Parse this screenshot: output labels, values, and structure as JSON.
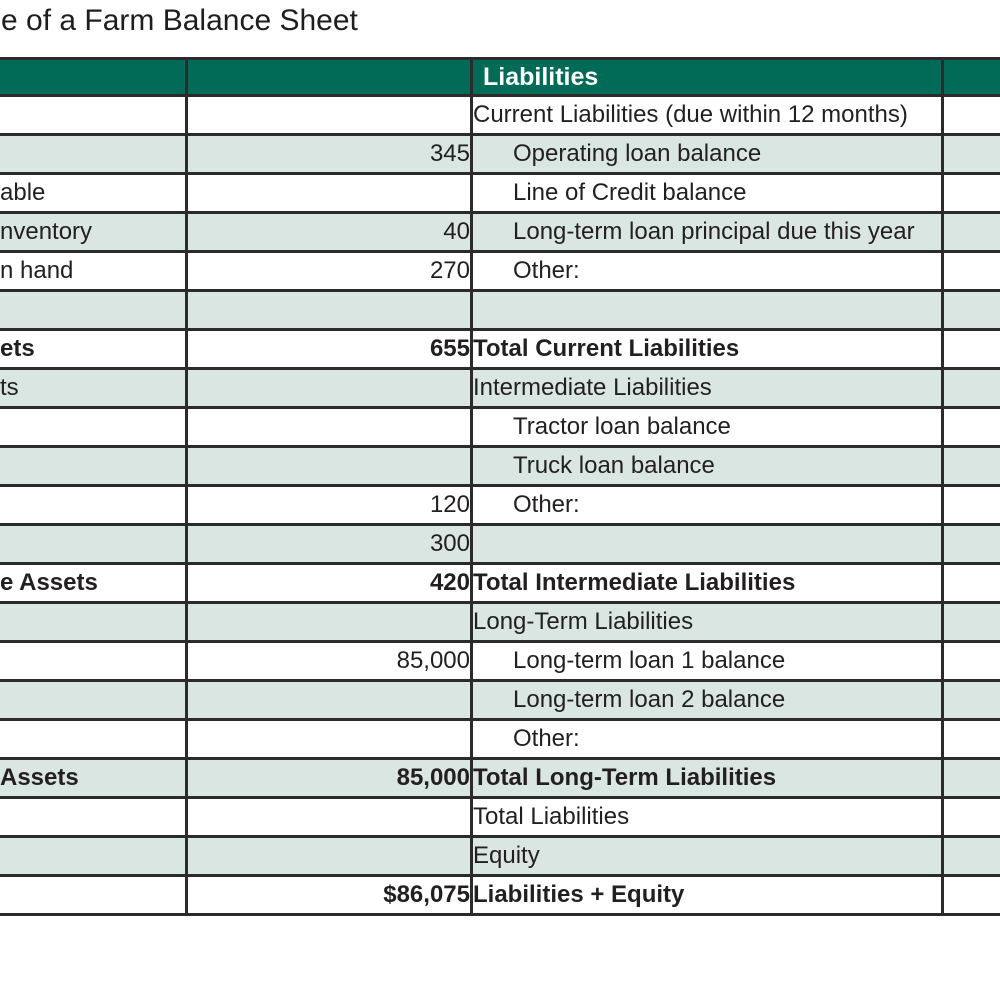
{
  "title": "e of a Farm Balance Sheet",
  "colors": {
    "header_bg": "#016b58",
    "header_text": "#ffffff",
    "row_tint": "#d9e6e1",
    "border": "#2b2b2b",
    "text": "#231f20"
  },
  "table": {
    "header": {
      "assets_label": "",
      "assets_value": "",
      "liabilities_label": "Liabilities",
      "liabilities_value": ""
    },
    "rows": [
      {
        "asset_fragment": "",
        "asset_value": "",
        "liability_label": "Current Liabilities (due within 12 months)",
        "liability_value": "",
        "shade": false,
        "bold": false,
        "indent": false
      },
      {
        "asset_fragment": "",
        "asset_value": "345",
        "liability_label": "Operating loan balance",
        "liability_value": "",
        "shade": true,
        "bold": false,
        "indent": true
      },
      {
        "asset_fragment": "able",
        "asset_value": "",
        "liability_label": "Line of Credit balance",
        "liability_value": "",
        "shade": false,
        "bold": false,
        "indent": true
      },
      {
        "asset_fragment": "nventory",
        "asset_value": "40",
        "liability_label": "Long-term loan principal due this year",
        "liability_value": "",
        "shade": true,
        "bold": false,
        "indent": true
      },
      {
        "asset_fragment": "n hand",
        "asset_value": "270",
        "liability_label": "Other:",
        "liability_value": "",
        "shade": false,
        "bold": false,
        "indent": true
      },
      {
        "asset_fragment": "",
        "asset_value": "",
        "liability_label": "",
        "liability_value": "",
        "shade": true,
        "bold": false,
        "indent": false
      },
      {
        "asset_fragment": "ets",
        "asset_value": "655",
        "liability_label": "Total Current Liabilities",
        "liability_value": "",
        "shade": false,
        "bold": true,
        "indent": false
      },
      {
        "asset_fragment": "ts",
        "asset_value": "",
        "liability_label": "Intermediate Liabilities",
        "liability_value": "",
        "shade": true,
        "bold": false,
        "indent": false
      },
      {
        "asset_fragment": "",
        "asset_value": "",
        "liability_label": "Tractor loan balance",
        "liability_value": "",
        "shade": false,
        "bold": false,
        "indent": true
      },
      {
        "asset_fragment": "",
        "asset_value": "",
        "liability_label": "Truck loan balance",
        "liability_value": "",
        "shade": true,
        "bold": false,
        "indent": true
      },
      {
        "asset_fragment": "",
        "asset_value": "120",
        "liability_label": "Other:",
        "liability_value": "",
        "shade": false,
        "bold": false,
        "indent": true
      },
      {
        "asset_fragment": "",
        "asset_value": "300",
        "liability_label": "",
        "liability_value": "",
        "shade": true,
        "bold": false,
        "indent": false
      },
      {
        "asset_fragment": "e Assets",
        "asset_value": "420",
        "liability_label": "Total Intermediate Liabilities",
        "liability_value": "",
        "shade": false,
        "bold": true,
        "indent": false
      },
      {
        "asset_fragment": "",
        "asset_value": "",
        "liability_label": "Long-Term Liabilities",
        "liability_value": "",
        "shade": true,
        "bold": false,
        "indent": false
      },
      {
        "asset_fragment": "",
        "asset_value": "85,000",
        "liability_label": "Long-term loan 1 balance",
        "liability_value": "",
        "shade": false,
        "bold": false,
        "indent": true
      },
      {
        "asset_fragment": "",
        "asset_value": "",
        "liability_label": "Long-term loan 2 balance",
        "liability_value": "",
        "shade": true,
        "bold": false,
        "indent": true
      },
      {
        "asset_fragment": "",
        "asset_value": "",
        "liability_label": "Other:",
        "liability_value": "",
        "shade": false,
        "bold": false,
        "indent": true
      },
      {
        "asset_fragment": "Assets",
        "asset_value": "85,000",
        "liability_label": "Total Long-Term Liabilities",
        "liability_value": "",
        "shade": true,
        "bold": true,
        "indent": false
      },
      {
        "asset_fragment": "",
        "asset_value": "",
        "liability_label": "Total Liabilities",
        "liability_value": "",
        "shade": false,
        "bold": false,
        "indent": false
      },
      {
        "asset_fragment": "",
        "asset_value": "",
        "liability_label": "Equity",
        "liability_value": "",
        "shade": true,
        "bold": false,
        "indent": false
      },
      {
        "asset_fragment": "",
        "asset_value": "$86,075",
        "liability_label": "Liabilities + Equity",
        "liability_value": "",
        "shade": false,
        "bold": true,
        "indent": false
      }
    ]
  }
}
